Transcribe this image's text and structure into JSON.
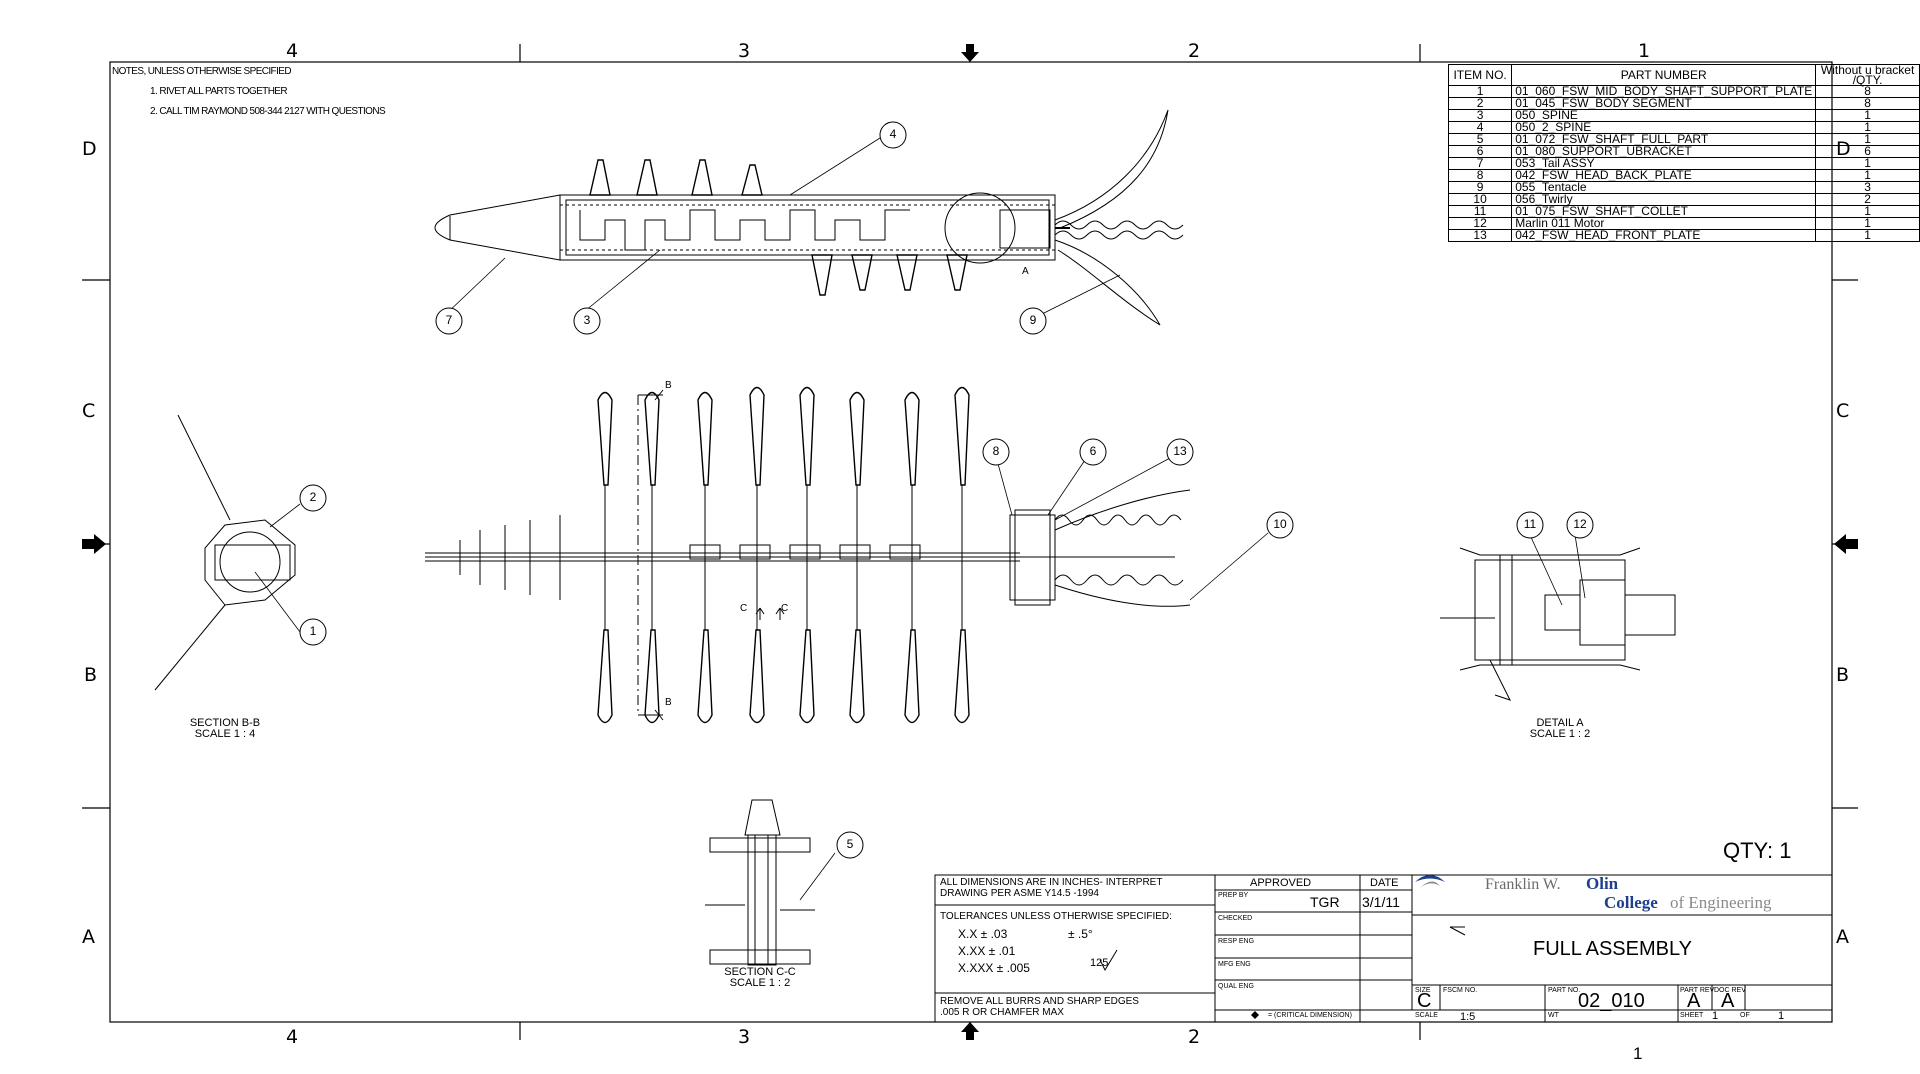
{
  "zones": {
    "columns": [
      "4",
      "3",
      "2",
      "1"
    ],
    "rows": [
      "D",
      "C",
      "B",
      "A"
    ]
  },
  "notes": {
    "header": "NOTES, UNLESS OTHERWISE SPECIFIED",
    "items": [
      "1.  RIVET ALL PARTS TOGETHER",
      "2.  CALL TIM RAYMOND 508-344 2127 WITH QUESTIONS"
    ]
  },
  "bom": {
    "headers": [
      "ITEM NO.",
      "PART NUMBER",
      "Without u bracket /QTY."
    ],
    "rows": [
      {
        "item": "1",
        "part": "01_060_FSW_MID_BODY_SHAFT_SUPPORT_PLATE",
        "qty": "8"
      },
      {
        "item": "2",
        "part": "01_045_FSW_BODY SEGMENT",
        "qty": "8"
      },
      {
        "item": "3",
        "part": "050_SPINE",
        "qty": "1"
      },
      {
        "item": "4",
        "part": "050_2_SPINE",
        "qty": "1"
      },
      {
        "item": "5",
        "part": "01_072_FSW_SHAFT_FULL_PART",
        "qty": "1"
      },
      {
        "item": "6",
        "part": "01_080_SUPPORT_UBRACKET",
        "qty": "6"
      },
      {
        "item": "7",
        "part": "053_Tail ASSY",
        "qty": "1"
      },
      {
        "item": "8",
        "part": "042_FSW_HEAD_BACK_PLATE",
        "qty": "1"
      },
      {
        "item": "9",
        "part": "055_Tentacle",
        "qty": "3"
      },
      {
        "item": "10",
        "part": "056_Twirly",
        "qty": "2"
      },
      {
        "item": "11",
        "part": "01_075_FSW_SHAFT_COLLET",
        "qty": "1"
      },
      {
        "item": "12",
        "part": "Marlin 011 Motor",
        "qty": "1"
      },
      {
        "item": "13",
        "part": "042_FSW_HEAD_FRONT_PLATE",
        "qty": "1"
      }
    ]
  },
  "balloons": {
    "b1": "1",
    "b2": "2",
    "b3": "3",
    "b4": "4",
    "b5": "5",
    "b6": "6",
    "b7": "7",
    "b8": "8",
    "b9": "9",
    "b10": "10",
    "b11": "11",
    "b12": "12",
    "b13": "13"
  },
  "markers": {
    "section_b": "B",
    "section_c": "C",
    "detail_a": "A"
  },
  "views": {
    "section_bb": {
      "title": "SECTION B-B",
      "scale": "SCALE 1 : 4"
    },
    "section_cc": {
      "title": "SECTION C-C",
      "scale": "SCALE 1 : 2"
    },
    "detail_a": {
      "title": "DETAIL A",
      "scale": "SCALE 1 : 2"
    }
  },
  "qty": "QTY: 1",
  "title_block": {
    "dims_note_1": "ALL DIMENSIONS ARE IN INCHES- INTERPRET",
    "dims_note_2": "DRAWING PER ASME  Y14.5 -1994",
    "tol_header": "TOLERANCES UNLESS OTHERWISE SPECIFIED:",
    "tol_1": "X.X    ± .03",
    "tol_angle": "± .5°",
    "tol_2": "X.XX   ± .01",
    "tol_3": "X.XXX ± .005",
    "finish": "125",
    "burrs_1": "REMOVE ALL BURRS AND SHARP EDGES",
    "burrs_2": ".005 R OR CHAMFER MAX",
    "approved": "APPROVED",
    "date_hdr": "DATE",
    "prep_by": "PREP BY",
    "prep_name": "TGR",
    "prep_date": "3/1/11",
    "checked": "CHECKED",
    "resp_eng": "RESP ENG",
    "mfg_eng": "MFG ENG",
    "qual_eng": "QUAL  ENG",
    "critical": "= (CRITICAL DIMENSION)",
    "logo_1": "Franklin W.",
    "logo_olin": "Olin",
    "logo_college": "College",
    "logo_of": "of Engineering",
    "title": "FULL ASSEMBLY",
    "size_lbl": "SIZE",
    "size": "C",
    "fscm_lbl": "FSCM NO.",
    "partno_lbl": "PART NO.",
    "partno": "02_010",
    "partrev_lbl": "PART REV",
    "partrev": "A",
    "docrev_lbl": "DOC REV",
    "docrev": "A",
    "scale_lbl": "SCALE",
    "scale": "1:5",
    "wt_lbl": "WT",
    "sheet_lbl": "SHEET",
    "sheet": "1",
    "of_lbl": "OF",
    "of": "1"
  },
  "footer_number": "1",
  "colors": {
    "line": "#000000",
    "logo_blue": "#1f3f8c",
    "logo_grey": "#8a8a8a",
    "logo_text": "#6b6b6b"
  }
}
